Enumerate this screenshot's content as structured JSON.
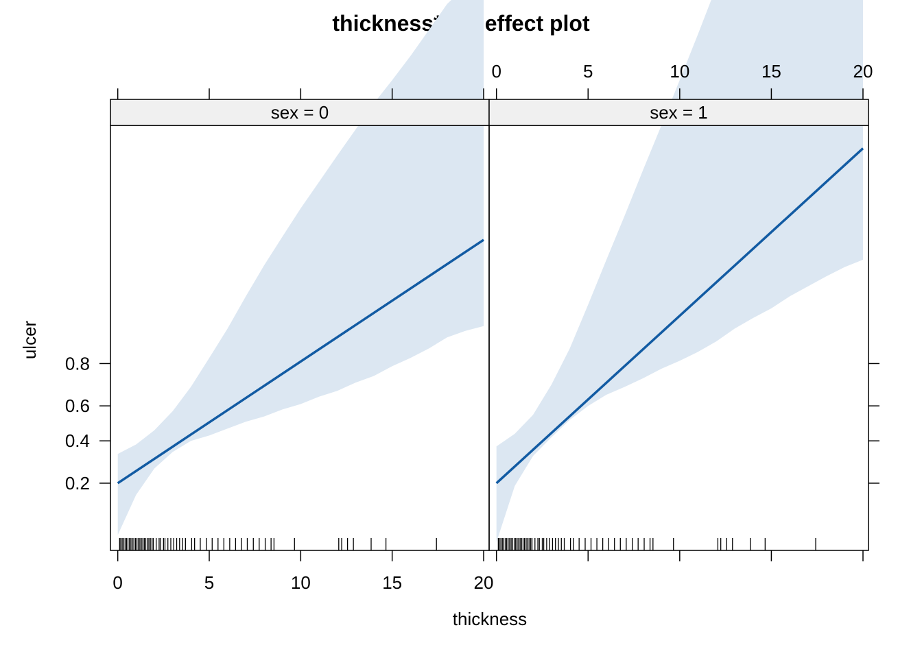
{
  "chart_data": {
    "type": "line",
    "title": "thickness*sex effect plot",
    "xlabel": "thickness",
    "ylabel": "ulcer",
    "x_ticks": [
      0,
      5,
      10,
      15,
      20
    ],
    "y_ticks": [
      0.2,
      0.4,
      0.6,
      0.8
    ],
    "xlim": [
      -0.4,
      20.3
    ],
    "y_scale": "logit",
    "ylim": [
      0.05,
      0.999
    ],
    "grid": false,
    "legend": "none",
    "colors": {
      "line": "#125BA3",
      "band": "#DCE7F2",
      "strip": "#F0F0F0"
    },
    "panels": [
      {
        "strip": "sex = 0",
        "fit": {
          "x": [
            0,
            20
          ],
          "y": [
            0.2,
            0.986
          ]
        },
        "band": {
          "x": [
            0,
            1,
            2,
            3,
            4,
            5,
            6,
            7,
            8,
            9,
            10,
            11,
            12,
            13,
            14,
            15,
            16,
            17,
            18,
            19,
            20
          ],
          "lower": [
            0.07,
            0.16,
            0.26,
            0.34,
            0.4,
            0.43,
            0.47,
            0.51,
            0.54,
            0.58,
            0.61,
            0.65,
            0.68,
            0.72,
            0.75,
            0.79,
            0.82,
            0.85,
            0.88,
            0.895,
            0.905
          ],
          "upper": [
            0.33,
            0.38,
            0.46,
            0.57,
            0.7,
            0.82,
            0.9,
            0.95,
            0.975,
            0.987,
            0.9932,
            0.9963,
            0.998,
            0.9989,
            0.9994,
            0.99965,
            0.9998,
            0.99989,
            0.99994,
            0.99996,
            0.99997
          ]
        },
        "rug": [
          0.1,
          0.16,
          0.24,
          0.32,
          0.4,
          0.48,
          0.56,
          0.64,
          0.72,
          0.8,
          0.88,
          0.97,
          1.05,
          1.13,
          1.21,
          1.29,
          1.37,
          1.45,
          1.53,
          1.62,
          1.7,
          1.78,
          1.87,
          1.94,
          2.1,
          2.26,
          2.34,
          2.5,
          2.58,
          2.74,
          2.9,
          3.06,
          3.22,
          3.38,
          3.54,
          3.7,
          4.04,
          4.2,
          4.51,
          4.84,
          5.16,
          5.48,
          5.8,
          6.12,
          6.44,
          6.76,
          7.08,
          7.41,
          7.73,
          8.06,
          8.38,
          8.54,
          9.66,
          12.08,
          12.24,
          12.56,
          12.88,
          13.85,
          14.66,
          17.42
        ]
      },
      {
        "strip": "sex = 1",
        "fit": {
          "x": [
            0,
            20
          ],
          "y": [
            0.2,
            0.9983
          ]
        },
        "band": {
          "x": [
            0,
            1,
            2,
            3,
            4,
            5,
            6,
            7,
            8,
            9,
            10,
            11,
            12,
            13,
            14,
            15,
            16,
            17,
            18,
            19,
            20
          ],
          "lower": [
            0.06,
            0.19,
            0.32,
            0.42,
            0.52,
            0.6,
            0.66,
            0.7,
            0.74,
            0.78,
            0.81,
            0.84,
            0.87,
            0.9,
            0.92,
            0.935,
            0.95,
            0.96,
            0.968,
            0.974,
            0.978
          ],
          "upper": [
            0.37,
            0.44,
            0.55,
            0.71,
            0.85,
            0.94,
            0.978,
            0.992,
            0.9972,
            0.999,
            0.99965,
            0.99988,
            0.99996,
            0.999985,
            0.999995,
            0.999998,
            0.9999994,
            0.9999998,
            0.99999993,
            0.99999998,
            0.999999993
          ]
        },
        "rug": [
          0.1,
          0.16,
          0.24,
          0.32,
          0.4,
          0.48,
          0.56,
          0.64,
          0.72,
          0.8,
          0.88,
          0.97,
          1.05,
          1.13,
          1.21,
          1.29,
          1.37,
          1.45,
          1.53,
          1.62,
          1.7,
          1.78,
          1.87,
          1.94,
          2.1,
          2.26,
          2.34,
          2.5,
          2.58,
          2.74,
          2.9,
          3.06,
          3.22,
          3.38,
          3.54,
          3.7,
          4.04,
          4.2,
          4.51,
          4.84,
          5.16,
          5.48,
          5.8,
          6.12,
          6.44,
          6.76,
          7.08,
          7.41,
          7.73,
          8.06,
          8.38,
          8.54,
          9.66,
          12.08,
          12.24,
          12.56,
          12.88,
          13.85,
          14.66,
          17.42
        ]
      }
    ]
  }
}
